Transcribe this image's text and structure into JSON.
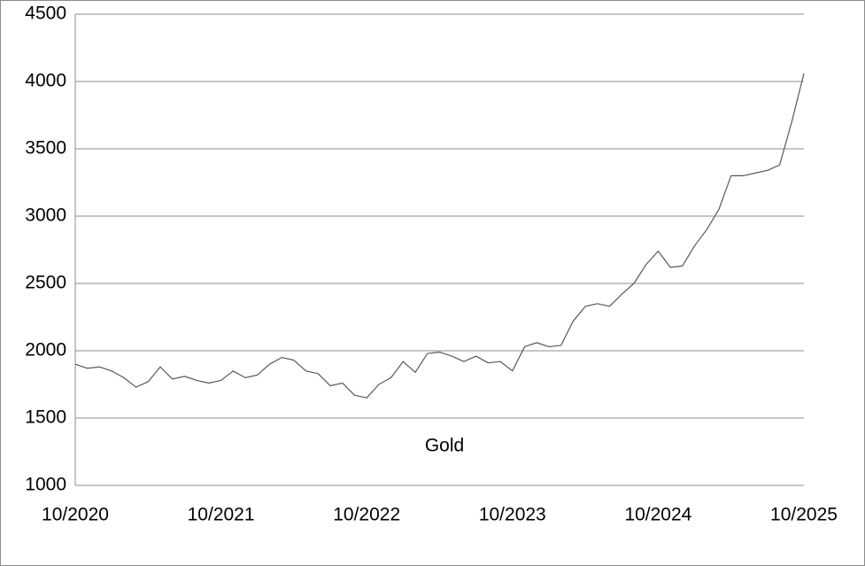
{
  "chart_data": {
    "type": "line",
    "categories": [
      "10/2020",
      null,
      null,
      null,
      null,
      null,
      null,
      null,
      null,
      null,
      null,
      null,
      "10/2021",
      null,
      null,
      null,
      null,
      null,
      null,
      null,
      null,
      null,
      null,
      null,
      "10/2022",
      null,
      null,
      null,
      null,
      null,
      null,
      null,
      null,
      null,
      null,
      null,
      "10/2023",
      null,
      null,
      null,
      null,
      null,
      null,
      null,
      null,
      null,
      null,
      null,
      "10/2024",
      null,
      null,
      null,
      null,
      null,
      null,
      null,
      null,
      null,
      null,
      null,
      "10/2025"
    ],
    "series": [
      {
        "name": "Gold",
        "color": "#595959",
        "values": [
          1900,
          1870,
          1880,
          1850,
          1800,
          1730,
          1770,
          1880,
          1790,
          1810,
          1780,
          1760,
          1780,
          1850,
          1800,
          1820,
          1900,
          1950,
          1930,
          1850,
          1830,
          1740,
          1760,
          1670,
          1650,
          1750,
          1800,
          1920,
          1840,
          1980,
          1990,
          1960,
          1920,
          1960,
          1910,
          1920,
          1850,
          2030,
          2060,
          2030,
          2040,
          2220,
          2330,
          2350,
          2330,
          2420,
          2500,
          2640,
          2740,
          2620,
          2630,
          2780,
          2900,
          3050,
          3300,
          3300,
          3320,
          3340,
          3380,
          3700,
          4060
        ]
      }
    ],
    "ylim": [
      1000,
      4500
    ],
    "yticks": [
      1000,
      1500,
      2000,
      2500,
      3000,
      3500,
      4000,
      4500
    ],
    "grid": true
  }
}
